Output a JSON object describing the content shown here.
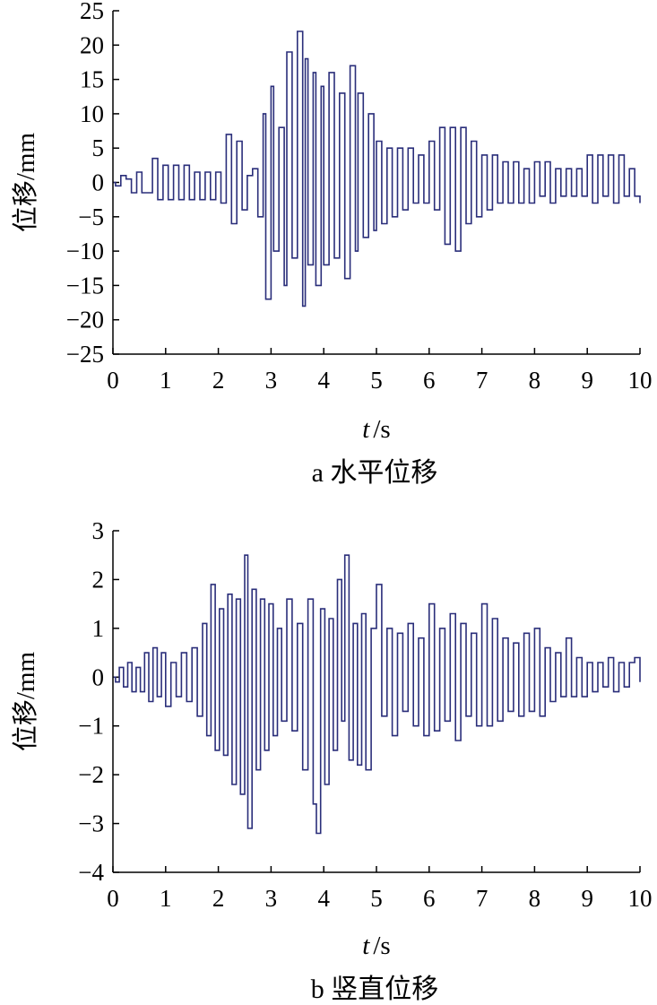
{
  "colors": {
    "line": "#2a2e7a",
    "axis": "#000000"
  },
  "chart_data": [
    {
      "type": "line",
      "caption": "a 水平位移",
      "xlabel_var": "t",
      "xlabel_unit": "/s",
      "ylabel": "位移/mm",
      "xlim": [
        0,
        10
      ],
      "ylim": [
        -25,
        25
      ],
      "x_ticks": [
        0,
        1,
        2,
        3,
        4,
        5,
        6,
        7,
        8,
        9,
        10
      ],
      "y_ticks": [
        25,
        20,
        15,
        10,
        5,
        0,
        -5,
        -10,
        -15,
        -20,
        -25
      ],
      "y_tick_labels": [
        "25",
        "20",
        "15",
        "10",
        "5",
        "0",
        "−5",
        "−10",
        "−15",
        "−20",
        "−25"
      ],
      "grid": false,
      "series": [
        {
          "x": [
            0,
            0.05,
            0.15,
            0.25,
            0.35,
            0.45,
            0.55,
            0.65,
            0.75,
            0.85,
            0.95,
            1.05,
            1.15,
            1.25,
            1.35,
            1.45,
            1.55,
            1.65,
            1.75,
            1.85,
            1.95,
            2.05,
            2.15,
            2.25,
            2.35,
            2.45,
            2.55,
            2.65,
            2.75,
            2.85,
            2.9,
            3.0,
            3.05,
            3.15,
            3.25,
            3.3,
            3.4,
            3.5,
            3.6,
            3.65,
            3.7,
            3.8,
            3.85,
            3.95,
            4.0,
            4.1,
            4.2,
            4.3,
            4.4,
            4.5,
            4.6,
            4.65,
            4.75,
            4.85,
            4.95,
            5.0,
            5.1,
            5.2,
            5.3,
            5.4,
            5.5,
            5.6,
            5.7,
            5.8,
            5.9,
            6.0,
            6.1,
            6.2,
            6.3,
            6.4,
            6.5,
            6.6,
            6.7,
            6.8,
            6.9,
            7.0,
            7.1,
            7.2,
            7.3,
            7.4,
            7.5,
            7.6,
            7.7,
            7.8,
            7.9,
            8.0,
            8.1,
            8.2,
            8.3,
            8.4,
            8.5,
            8.6,
            8.7,
            8.8,
            8.9,
            9.0,
            9.1,
            9.2,
            9.3,
            9.4,
            9.5,
            9.6,
            9.7,
            9.8,
            9.9,
            10.0
          ],
          "y": [
            0,
            -0.5,
            1,
            0.5,
            -1.5,
            1.5,
            -1.5,
            -1.5,
            3.5,
            -2.5,
            2.5,
            -2.5,
            2.5,
            -2.5,
            2.5,
            -2.5,
            1.5,
            -2.5,
            1.5,
            -2.5,
            1.5,
            -3,
            7,
            -6,
            6,
            -4,
            1,
            2,
            -5,
            10,
            -17,
            14,
            -10,
            8,
            -15,
            19,
            -11,
            22,
            -18,
            18,
            -12,
            16,
            -15,
            14,
            -12,
            16,
            -11,
            13,
            -14,
            17,
            -10,
            13,
            -8,
            10,
            -7,
            6,
            -6,
            5,
            -5,
            5,
            -4,
            5,
            -3,
            4,
            -3,
            6,
            -4,
            8,
            -9,
            8,
            -10,
            8,
            -6,
            6,
            -5,
            4,
            -4,
            4,
            -3,
            3,
            -3,
            3,
            -3,
            2,
            -3,
            3,
            -2,
            3,
            -3,
            2,
            -2,
            2,
            -2,
            2,
            -2,
            4,
            -3,
            4,
            -2,
            4,
            -3,
            4,
            -2,
            2,
            -2,
            -3
          ]
        }
      ]
    },
    {
      "type": "line",
      "caption": "b 竖直位移",
      "xlabel_var": "t",
      "xlabel_unit": "/s",
      "ylabel": "位移/mm",
      "xlim": [
        0,
        10
      ],
      "ylim": [
        -4,
        3
      ],
      "x_ticks": [
        0,
        1,
        2,
        3,
        4,
        5,
        6,
        7,
        8,
        9,
        10
      ],
      "y_ticks": [
        3,
        2,
        1,
        0,
        -1,
        -2,
        -3,
        -4
      ],
      "y_tick_labels": [
        "3",
        "2",
        "1",
        "0",
        "−1",
        "−2",
        "−3",
        "−4"
      ],
      "grid": false,
      "series": [
        {
          "x": [
            0,
            0.05,
            0.12,
            0.2,
            0.28,
            0.36,
            0.44,
            0.52,
            0.6,
            0.68,
            0.76,
            0.84,
            0.92,
            1.0,
            1.1,
            1.2,
            1.3,
            1.4,
            1.5,
            1.6,
            1.7,
            1.78,
            1.86,
            1.94,
            2.02,
            2.1,
            2.18,
            2.26,
            2.34,
            2.42,
            2.5,
            2.56,
            2.64,
            2.72,
            2.8,
            2.88,
            2.96,
            3.04,
            3.12,
            3.2,
            3.3,
            3.4,
            3.5,
            3.6,
            3.7,
            3.8,
            3.86,
            3.94,
            4.02,
            4.1,
            4.18,
            4.26,
            4.34,
            4.4,
            4.48,
            4.56,
            4.64,
            4.72,
            4.8,
            4.9,
            5.0,
            5.1,
            5.2,
            5.3,
            5.4,
            5.5,
            5.6,
            5.7,
            5.8,
            5.9,
            6.0,
            6.1,
            6.2,
            6.3,
            6.4,
            6.5,
            6.6,
            6.7,
            6.8,
            6.9,
            7.0,
            7.1,
            7.2,
            7.3,
            7.4,
            7.5,
            7.6,
            7.7,
            7.8,
            7.9,
            8.0,
            8.1,
            8.2,
            8.3,
            8.4,
            8.5,
            8.6,
            8.7,
            8.8,
            8.9,
            9.0,
            9.1,
            9.2,
            9.3,
            9.4,
            9.5,
            9.6,
            9.7,
            9.8,
            9.9,
            10.0
          ],
          "y": [
            0,
            -0.1,
            0.2,
            -0.2,
            0.3,
            -0.3,
            0.2,
            -0.3,
            0.5,
            -0.5,
            0.6,
            -0.4,
            0.5,
            -0.6,
            0.3,
            -0.4,
            0.5,
            -0.5,
            0.6,
            -0.8,
            1.1,
            -1.2,
            1.9,
            -1.5,
            1.4,
            -1.6,
            1.7,
            -2.2,
            1.6,
            -2.4,
            2.5,
            -3.1,
            1.8,
            -1.9,
            1.6,
            -1.5,
            1.5,
            -1.2,
            1.0,
            -0.9,
            1.6,
            -1.1,
            1.1,
            -1.9,
            1.6,
            -2.6,
            -3.2,
            1.4,
            -2.2,
            1.2,
            -1.5,
            2.0,
            -0.9,
            2.5,
            -1.7,
            1.1,
            -1.8,
            1.3,
            -1.9,
            1.0,
            1.9,
            -0.8,
            1.0,
            -1.2,
            0.9,
            -0.7,
            1.1,
            -1.0,
            0.8,
            -1.2,
            1.5,
            -1.1,
            1.0,
            -0.9,
            1.3,
            -1.3,
            1.1,
            -0.8,
            0.9,
            -1.0,
            1.5,
            -1.0,
            1.2,
            -0.9,
            0.8,
            -0.7,
            0.7,
            -0.8,
            0.9,
            -0.7,
            1.0,
            -0.8,
            0.6,
            -0.5,
            0.5,
            -0.4,
            0.8,
            -0.4,
            0.4,
            -0.4,
            0.3,
            -0.3,
            0.3,
            -0.2,
            0.4,
            -0.3,
            0.3,
            -0.2,
            0.3,
            0.4,
            -0.1
          ]
        }
      ]
    }
  ]
}
